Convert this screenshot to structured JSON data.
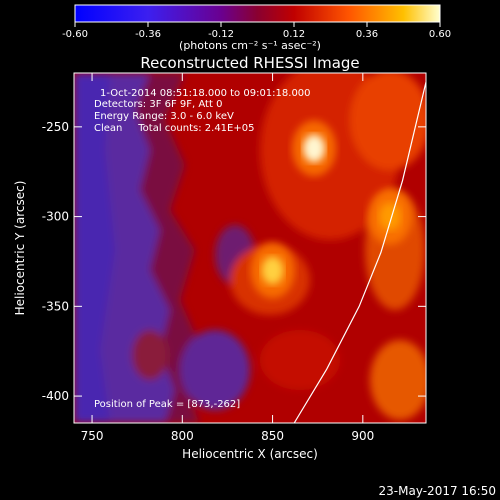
{
  "colorbar": {
    "ticks": [
      "-0.60",
      "-0.36",
      "-0.12",
      "0.12",
      "0.36",
      "0.60"
    ],
    "tick_values": [
      -0.6,
      -0.36,
      -0.12,
      0.12,
      0.36,
      0.6
    ],
    "range": [
      -0.6,
      0.6
    ],
    "units": "(photons cm⁻² s⁻¹ asec⁻²)"
  },
  "chart_data": {
    "type": "heatmap",
    "title": "Reconstructed RHESSI Image",
    "xlabel": "Heliocentric X (arcsec)",
    "ylabel": "Heliocentric Y (arcsec)",
    "xlim": [
      740,
      935
    ],
    "ylim": [
      -415,
      -220
    ],
    "xticks": [
      750,
      800,
      850,
      900
    ],
    "xtick_labels": [
      "750",
      "800",
      "850",
      "900"
    ],
    "yticks": [
      -250,
      -300,
      -350,
      -400
    ],
    "ytick_labels": [
      "-250",
      "-300",
      "-350",
      "-400"
    ],
    "annotations": [
      "1-Oct-2014 08:51:18.000 to 09:01:18.000",
      "Detectors: 3F 6F 9F, Att 0",
      "Energy Range: 3.0 - 6.0 keV",
      "Clean     Total counts: 2.41E+05"
    ],
    "peak_label": "Position of Peak = [873,-262]",
    "peak": [
      873,
      -262
    ],
    "hot_spots": [
      {
        "x": 873,
        "y": -262,
        "value": 0.6
      },
      {
        "x": 850,
        "y": -330,
        "value": 0.45
      },
      {
        "x": 915,
        "y": -300,
        "value": 0.35
      }
    ],
    "limb_curve": [
      [
        862,
        -415
      ],
      [
        880,
        -385
      ],
      [
        898,
        -350
      ],
      [
        910,
        -320
      ],
      [
        922,
        -280
      ],
      [
        935,
        -225
      ]
    ]
  },
  "footer": {
    "timestamp": "23-May-2017 16:50"
  }
}
